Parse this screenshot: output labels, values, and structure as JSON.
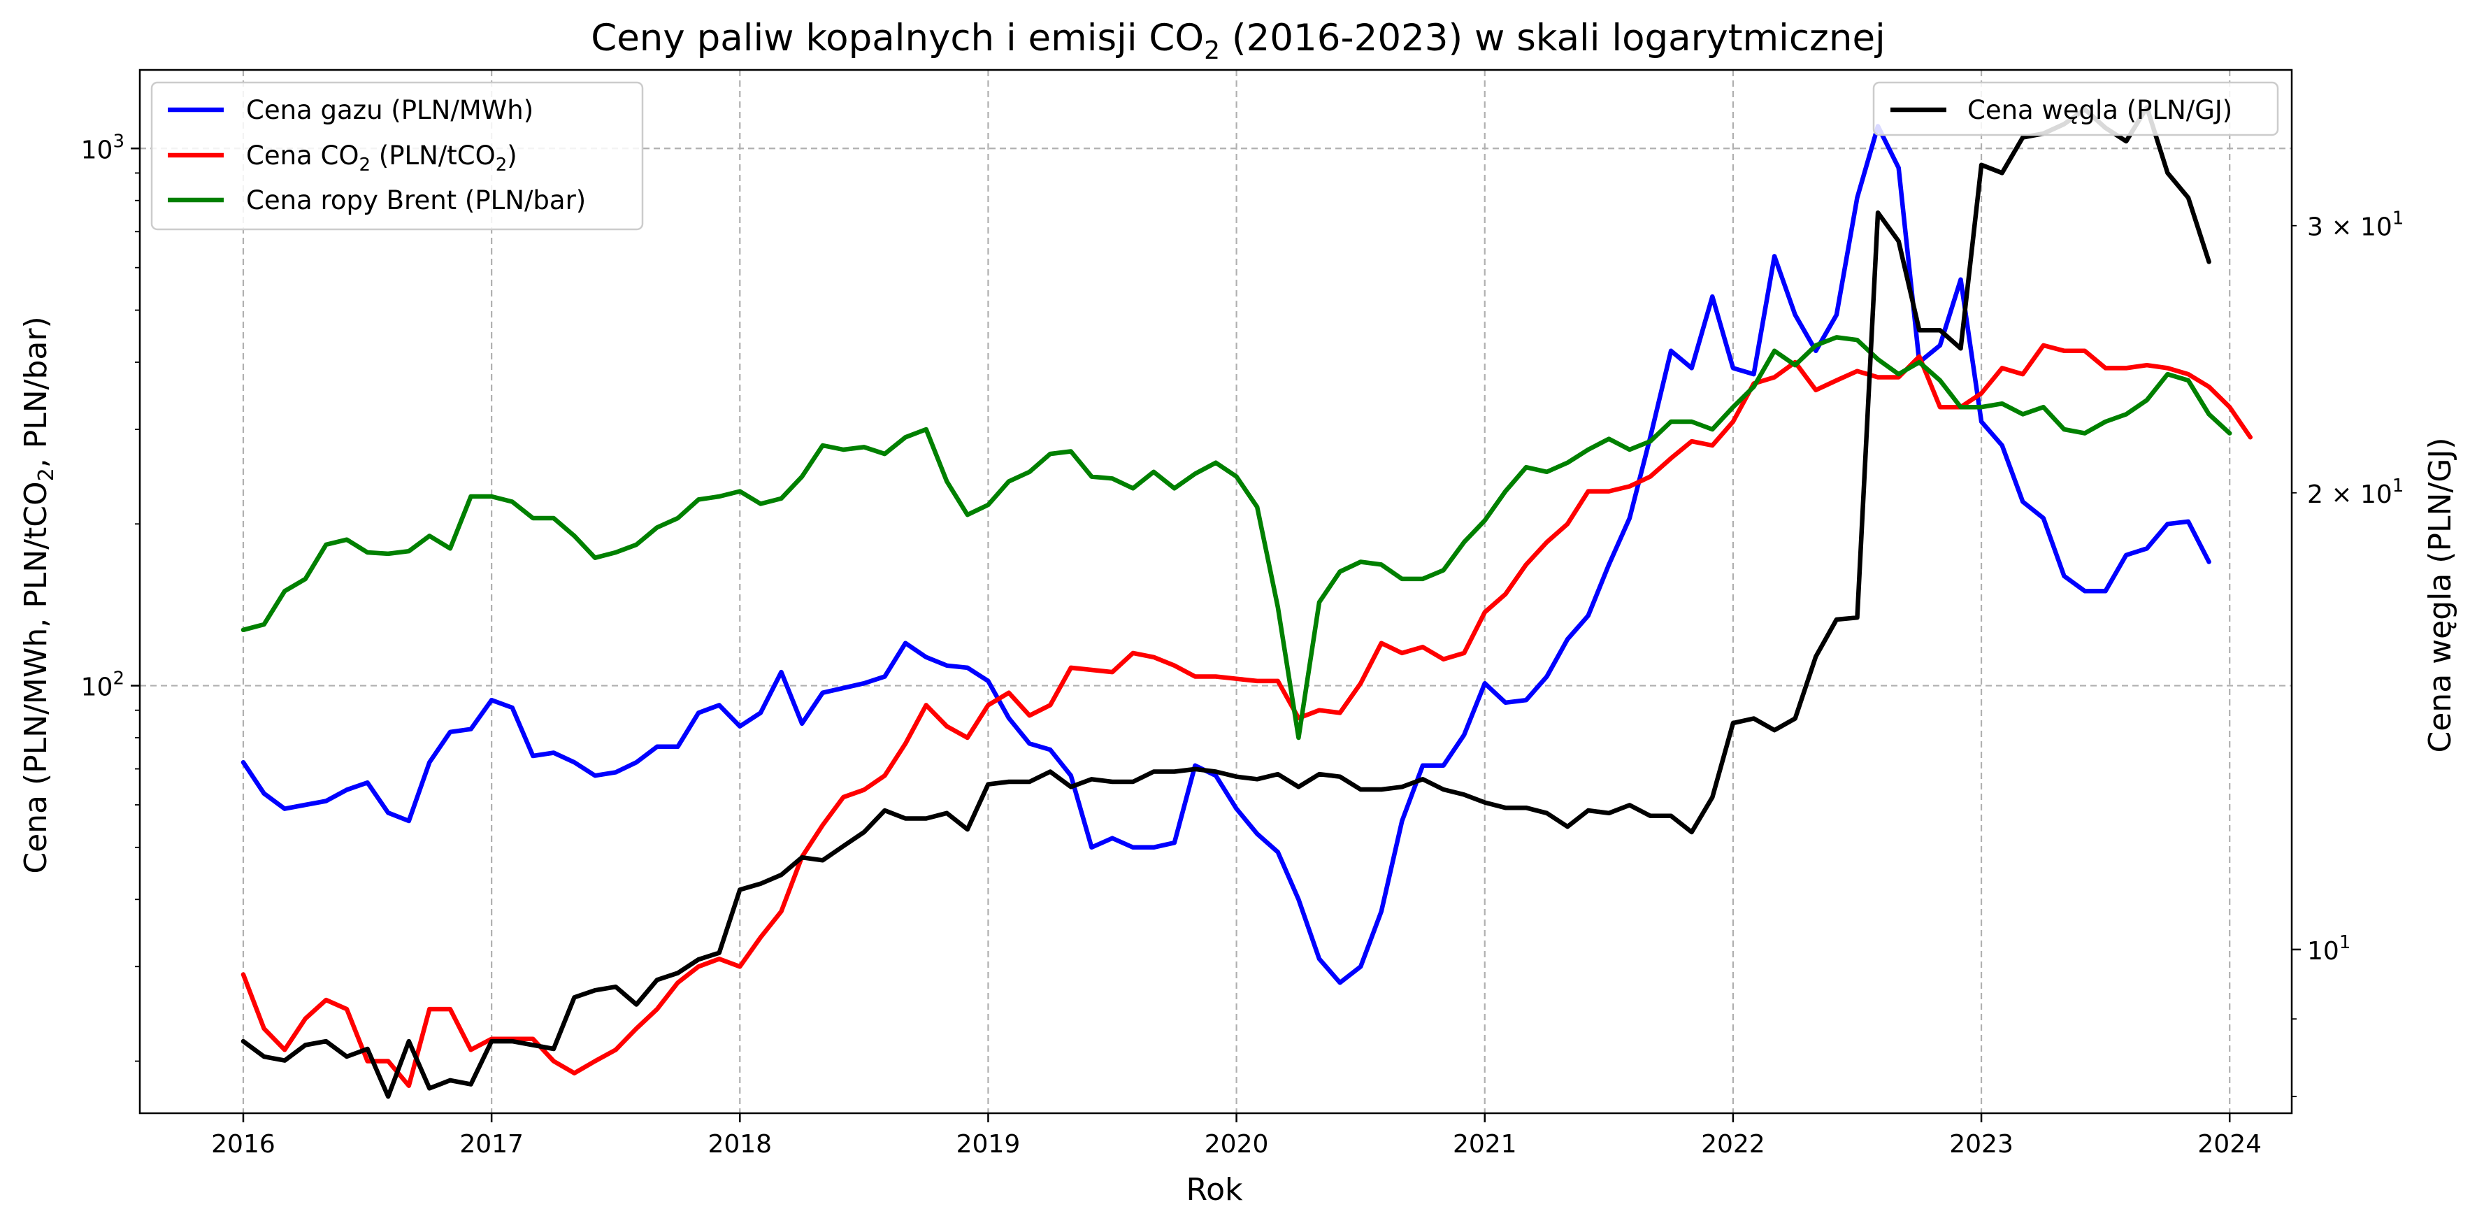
{
  "chart_data": {
    "type": "line",
    "title_parts": {
      "before": "Ceny paliw kopalnych i emisji CO",
      "sub": "2",
      "after": " (2016-2023) w skali logarytmicznej"
    },
    "xlabel": "Rok",
    "ylabel_left_parts": {
      "before": "Cena (PLN/MWh, PLN/tCO",
      "sub": "2",
      "after": ", PLN/bar)"
    },
    "ylabel_right": "Cena węgla (PLN/GJ)",
    "x_ticks": [
      "2016",
      "2017",
      "2018",
      "2019",
      "2020",
      "2021",
      "2022",
      "2023",
      "2024"
    ],
    "x_range": [
      "2015-08",
      "2024-04"
    ],
    "y_left": {
      "scale": "log",
      "range": [
        16,
        1400
      ],
      "major_ticks": [
        100,
        1000
      ],
      "major_tick_labels": [
        {
          "base": "10",
          "exp": "2"
        },
        {
          "base": "10",
          "exp": "3"
        }
      ]
    },
    "y_right": {
      "scale": "log",
      "range": [
        7.8,
        38
      ],
      "labeled_ticks": [
        10,
        20,
        30
      ],
      "tick_labels": [
        {
          "mult": "",
          "base": "10",
          "exp": "1"
        },
        {
          "mult": "2 × ",
          "base": "10",
          "exp": "1"
        },
        {
          "mult": "3 × ",
          "base": "10",
          "exp": "1"
        }
      ]
    },
    "grid": true,
    "legend_left": {
      "placement": "top-left",
      "entries": [
        {
          "parts": {
            "before": "Cena gazu (PLN/MWh)",
            "sub": "",
            "after": ""
          },
          "color": "#0000ff"
        },
        {
          "parts": {
            "before": "Cena CO",
            "sub": "2",
            "after": " (PLN/tCO"
          },
          "tail_sub": "2",
          "tail": ")",
          "color": "#ff0000"
        },
        {
          "parts": {
            "before": "Cena ropy Brent (PLN/bar)",
            "sub": "",
            "after": ""
          },
          "color": "#008000"
        }
      ]
    },
    "legend_right": {
      "placement": "top-right",
      "entries": [
        {
          "text": "Cena węgla (PLN/GJ)",
          "color": "#000000"
        }
      ]
    },
    "x_start": "2016-01",
    "x_step": "1 month",
    "series": [
      {
        "name": "Cena gazu (PLN/MWh)",
        "axis": "left",
        "color": "#0000ff",
        "values": [
          72,
          63,
          59,
          60,
          61,
          64,
          66,
          58,
          56,
          72,
          82,
          83,
          94,
          91,
          74,
          75,
          72,
          68,
          69,
          72,
          77,
          77,
          89,
          92,
          84,
          89,
          106,
          85,
          97,
          99,
          101,
          104,
          120,
          113,
          109,
          108,
          102,
          87,
          78,
          76,
          68,
          50,
          52,
          50,
          50,
          51,
          71,
          68,
          59,
          53,
          49,
          40,
          31,
          28,
          30,
          38,
          56,
          71,
          71,
          81,
          101,
          93,
          94,
          104,
          122,
          135,
          168,
          205,
          290,
          420,
          390,
          530,
          390,
          380,
          630,
          490,
          420,
          490,
          810,
          1100,
          920,
          400,
          430,
          570,
          310,
          280,
          220,
          205,
          160,
          150,
          150,
          175,
          180,
          200,
          202,
          170
        ]
      },
      {
        "name": "Cena CO2 (PLN/tCO2)",
        "axis": "left",
        "color": "#ff0000",
        "values": [
          29,
          23,
          21,
          24,
          26,
          25,
          20,
          20,
          18,
          25,
          25,
          21,
          22,
          22,
          22,
          20,
          19,
          20,
          21,
          23,
          25,
          28,
          30,
          31,
          30,
          34,
          38,
          48,
          55,
          62,
          64,
          68,
          78,
          92,
          84,
          80,
          92,
          97,
          88,
          92,
          108,
          107,
          106,
          115,
          113,
          109,
          104,
          104,
          103,
          102,
          102,
          87,
          90,
          89,
          101,
          120,
          115,
          118,
          112,
          115,
          137,
          148,
          168,
          185,
          200,
          230,
          230,
          235,
          245,
          265,
          285,
          280,
          310,
          365,
          375,
          400,
          355,
          370,
          385,
          375,
          375,
          410,
          330,
          330,
          350,
          390,
          380,
          430,
          420,
          420,
          390,
          390,
          395,
          390,
          380,
          360,
          330,
          290
        ]
      },
      {
        "name": "Cena ropy Brent (PLN/bar)",
        "axis": "left",
        "color": "#008000",
        "values": [
          127,
          130,
          150,
          158,
          183,
          187,
          177,
          176,
          178,
          190,
          180,
          225,
          225,
          220,
          205,
          205,
          190,
          173,
          177,
          183,
          197,
          205,
          222,
          225,
          230,
          218,
          223,
          245,
          280,
          275,
          278,
          270,
          290,
          300,
          240,
          208,
          217,
          240,
          250,
          270,
          273,
          245,
          243,
          233,
          250,
          233,
          248,
          260,
          245,
          215,
          140,
          80,
          143,
          163,
          170,
          168,
          158,
          158,
          164,
          185,
          203,
          230,
          255,
          250,
          260,
          275,
          288,
          275,
          285,
          310,
          310,
          300,
          330,
          360,
          420,
          395,
          430,
          445,
          440,
          405,
          380,
          400,
          370,
          330,
          330,
          335,
          320,
          330,
          300,
          295,
          310,
          320,
          340,
          380,
          370,
          320,
          295
        ]
      },
      {
        "name": "Cena węgla (PLN/GJ)",
        "axis": "right",
        "color": "#000000",
        "values": [
          8.7,
          8.5,
          8.45,
          8.65,
          8.7,
          8.5,
          8.6,
          8.0,
          8.7,
          8.1,
          8.2,
          8.15,
          8.7,
          8.7,
          8.65,
          8.6,
          9.3,
          9.4,
          9.45,
          9.2,
          9.55,
          9.65,
          9.85,
          9.95,
          10.95,
          11.05,
          11.2,
          11.5,
          11.45,
          11.7,
          11.95,
          12.35,
          12.2,
          12.2,
          12.3,
          12.0,
          12.85,
          12.9,
          12.9,
          13.1,
          12.8,
          12.95,
          12.9,
          12.9,
          13.1,
          13.1,
          13.15,
          13.1,
          13.0,
          12.95,
          13.05,
          12.8,
          13.05,
          13.0,
          12.75,
          12.75,
          12.8,
          12.95,
          12.75,
          12.65,
          12.5,
          12.4,
          12.4,
          12.3,
          12.05,
          12.35,
          12.3,
          12.45,
          12.25,
          12.25,
          11.95,
          12.6,
          14.1,
          14.2,
          13.95,
          14.2,
          15.6,
          16.5,
          16.55,
          30.6,
          29.3,
          25.6,
          25.6,
          24.9,
          32.9,
          32.5,
          34.3,
          34.5,
          35.0,
          35.8,
          34.8,
          34.1,
          35.9,
          32.5,
          31.3,
          28.4
        ]
      }
    ]
  }
}
